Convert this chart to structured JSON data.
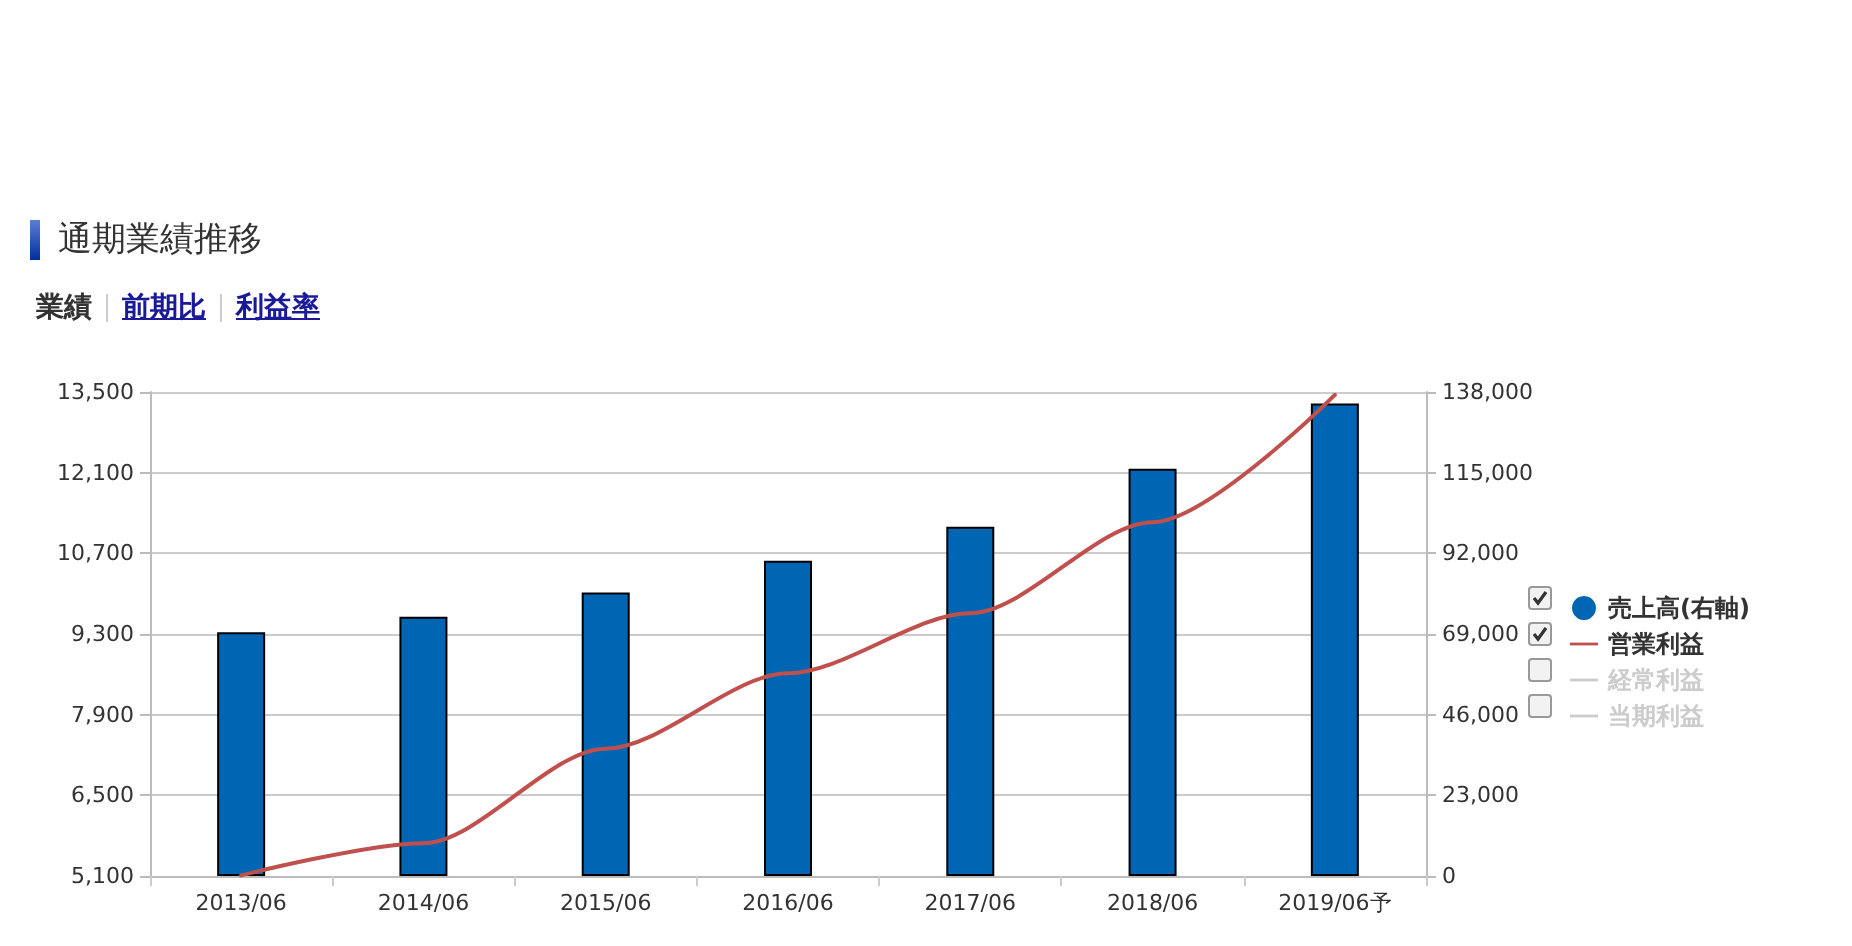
{
  "chart_data": {
    "type": "bar",
    "title": "通期業績推移",
    "annotations": [
      "業績",
      "前期比",
      "利益率"
    ],
    "categories": [
      "2013/06",
      "2014/06",
      "2015/06",
      "2016/06",
      "2017/06",
      "2018/06",
      "2019/06予"
    ],
    "series": [
      {
        "name": "売上高(右軸)",
        "axis": "y2",
        "color": "#0066b3",
        "values": [
          69500,
          73900,
          80800,
          89900,
          99600,
          116100,
          134700
        ]
      },
      {
        "name": "営業利益",
        "type": "line",
        "color": "#c0504d",
        "values": [
          5110,
          5670,
          7310,
          8620,
          9660,
          11240,
          13450
        ]
      },
      {
        "name": "経常利益",
        "type": "line",
        "color": "#cccccc",
        "values": [
          null,
          null,
          null,
          null,
          null,
          null,
          null
        ]
      },
      {
        "name": "当期利益",
        "type": "line",
        "color": "#cccccc",
        "values": [
          null,
          null,
          null,
          null,
          null,
          null,
          null
        ]
      }
    ],
    "ylim": [
      5100,
      13500
    ],
    "yticks": [
      {
        "value": 5100,
        "label": "5,100"
      },
      {
        "value": 6500,
        "label": "6,500"
      },
      {
        "value": 7900,
        "label": "7,900"
      },
      {
        "value": 9300,
        "label": "9,300"
      },
      {
        "value": 10700,
        "label": "10,700"
      },
      {
        "value": 12100,
        "label": "12,100"
      },
      {
        "value": 13500,
        "label": "13,500"
      }
    ],
    "y2lim": [
      0,
      138000
    ],
    "y2ticks": [
      0,
      {
        "value": 23000,
        "label": "23,000"
      },
      {
        "value": 46000,
        "label": "46,000"
      },
      {
        "value": 69000,
        "label": "69,000"
      },
      {
        "value": 92000,
        "label": "92,000"
      },
      {
        "value": 115000,
        "label": "115,000"
      },
      {
        "value": 138000,
        "label": "138,000"
      }
    ],
    "grid": "y",
    "legend": "right",
    "marker": "none"
  }
}
